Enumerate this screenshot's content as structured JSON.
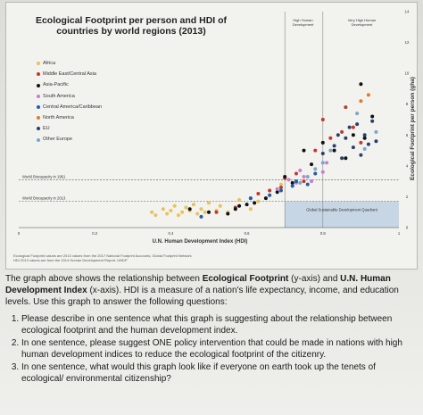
{
  "chart_data": {
    "type": "scatter",
    "title": "Ecological Footprint per person and HDI of countries by world regions (2013)",
    "xlabel": "U.N. Human Development Index (HDI)",
    "ylabel": "Ecological Footprint per person (gha)",
    "xlim": [
      0,
      1.0
    ],
    "ylim": [
      0,
      14
    ],
    "x_ticks": [
      "0",
      "0.2",
      "0.4",
      "0.6",
      "0.8",
      "1"
    ],
    "x_tick_values": [
      0,
      0.2,
      0.4,
      0.6,
      0.8,
      1.0
    ],
    "y_ticks": [
      "0",
      "2",
      "4",
      "6",
      "8",
      "10",
      "12",
      "14"
    ],
    "y_tick_values": [
      0,
      2,
      4,
      6,
      8,
      10,
      12,
      14
    ],
    "grid": false,
    "legend_position": "top-left",
    "hlines": [
      {
        "label": "World Biocapacity in 1961",
        "y": 3.1
      },
      {
        "label": "World Biocapacity in 2013",
        "y": 1.7
      }
    ],
    "vlines": [
      {
        "label": "High Human Development",
        "x": 0.7
      },
      {
        "label": "Very High Human Development",
        "x": 0.8
      }
    ],
    "quadrant_label": "Global Sustainable Development Quadrant",
    "series": [
      {
        "name": "Africa",
        "color": "#e8c25a",
        "points": [
          [
            0.35,
            1.0
          ],
          [
            0.36,
            0.8
          ],
          [
            0.38,
            1.2
          ],
          [
            0.39,
            0.9
          ],
          [
            0.4,
            1.1
          ],
          [
            0.41,
            1.4
          ],
          [
            0.42,
            0.8
          ],
          [
            0.43,
            1.0
          ],
          [
            0.44,
            1.3
          ],
          [
            0.45,
            1.1
          ],
          [
            0.46,
            1.5
          ],
          [
            0.47,
            0.9
          ],
          [
            0.48,
            1.2
          ],
          [
            0.49,
            1.0
          ],
          [
            0.5,
            1.6
          ],
          [
            0.52,
            1.1
          ],
          [
            0.53,
            1.4
          ],
          [
            0.55,
            1.0
          ],
          [
            0.57,
            1.3
          ],
          [
            0.58,
            1.8
          ],
          [
            0.61,
            1.2
          ],
          [
            0.63,
            1.7
          ],
          [
            0.66,
            2.1
          ],
          [
            0.69,
            2.8
          ]
        ]
      },
      {
        "name": "Middle East/Central Asia",
        "color": "#c0392b",
        "points": [
          [
            0.52,
            1.0
          ],
          [
            0.57,
            1.3
          ],
          [
            0.61,
            1.9
          ],
          [
            0.63,
            2.2
          ],
          [
            0.66,
            2.4
          ],
          [
            0.69,
            2.6
          ],
          [
            0.7,
            3.2
          ],
          [
            0.73,
            3.5
          ],
          [
            0.75,
            3.0
          ],
          [
            0.78,
            5.0
          ],
          [
            0.8,
            7.0
          ],
          [
            0.82,
            5.8
          ],
          [
            0.85,
            6.2
          ],
          [
            0.86,
            7.8
          ],
          [
            0.88,
            6.5
          ],
          [
            0.9,
            5.5
          ]
        ]
      },
      {
        "name": "Asia-Pacific",
        "color": "#111111",
        "points": [
          [
            0.45,
            1.2
          ],
          [
            0.5,
            1.0
          ],
          [
            0.55,
            0.9
          ],
          [
            0.57,
            1.2
          ],
          [
            0.58,
            1.4
          ],
          [
            0.6,
            1.5
          ],
          [
            0.62,
            1.6
          ],
          [
            0.65,
            1.9
          ],
          [
            0.68,
            2.3
          ],
          [
            0.7,
            3.3
          ],
          [
            0.72,
            2.9
          ],
          [
            0.75,
            5.0
          ],
          [
            0.77,
            4.1
          ],
          [
            0.8,
            5.5
          ],
          [
            0.83,
            5.0
          ],
          [
            0.86,
            4.5
          ],
          [
            0.88,
            6.0
          ],
          [
            0.9,
            9.3
          ],
          [
            0.91,
            5.8
          ],
          [
            0.93,
            7.2
          ]
        ]
      },
      {
        "name": "South America",
        "color": "#c97fc9",
        "points": [
          [
            0.68,
            2.5
          ],
          [
            0.71,
            3.1
          ],
          [
            0.73,
            2.9
          ],
          [
            0.74,
            3.7
          ],
          [
            0.75,
            3.3
          ],
          [
            0.77,
            3.0
          ],
          [
            0.8,
            3.6
          ],
          [
            0.81,
            4.2
          ]
        ]
      },
      {
        "name": "Central America/Caribbean",
        "color": "#1f5fa8",
        "points": [
          [
            0.48,
            0.7
          ],
          [
            0.61,
            1.9
          ],
          [
            0.66,
            2.1
          ],
          [
            0.69,
            2.4
          ],
          [
            0.72,
            2.7
          ],
          [
            0.73,
            3.0
          ],
          [
            0.76,
            2.8
          ],
          [
            0.78,
            3.5
          ]
        ]
      },
      {
        "name": "North America",
        "color": "#e07b2a",
        "points": [
          [
            0.9,
            8.2
          ],
          [
            0.92,
            8.6
          ]
        ]
      },
      {
        "name": "EU",
        "color": "#2b3f6b",
        "points": [
          [
            0.8,
            4.8
          ],
          [
            0.83,
            5.3
          ],
          [
            0.84,
            6.0
          ],
          [
            0.85,
            4.5
          ],
          [
            0.86,
            5.8
          ],
          [
            0.87,
            6.5
          ],
          [
            0.88,
            5.2
          ],
          [
            0.89,
            6.7
          ],
          [
            0.9,
            4.7
          ],
          [
            0.91,
            6.0
          ],
          [
            0.92,
            5.4
          ],
          [
            0.93,
            6.9
          ],
          [
            0.94,
            5.6
          ]
        ]
      },
      {
        "name": "Other Europe",
        "color": "#7aa6c9",
        "points": [
          [
            0.74,
            2.9
          ],
          [
            0.76,
            3.3
          ],
          [
            0.78,
            3.8
          ],
          [
            0.8,
            4.2
          ],
          [
            0.82,
            5.0
          ],
          [
            0.89,
            7.4
          ],
          [
            0.91,
            5.1
          ],
          [
            0.94,
            6.2
          ]
        ]
      }
    ]
  },
  "header_labels": {
    "high": [
      "High Human",
      "Development"
    ],
    "very_high": [
      "Very High Human",
      "Development"
    ]
  },
  "source_note": {
    "line1": "Ecological Footprint values are 2013 values from the 2017 National Footprint Accounts, Global Footprint Network",
    "line2": "HDI 2013 values are from the 2014 Human Development Report, UNDP"
  },
  "intro": {
    "part1": "The graph above shows the relationship between ",
    "bold1": "Ecological Footprint",
    "part2": " (y-axis) and ",
    "bold2": "U.N. Human Development Index",
    "part3": " (x-axis). HDI is a measure of a nation's life expectancy, income, and education levels. Use this graph to answer the following questions:"
  },
  "questions": [
    "Please describe in one sentence what this graph is suggesting about the relationship between ecological footprint and the human development index.",
    "In one sentence, please suggest ONE policy intervention that could be made in nations with high human development indices to reduce the ecological footprint of the citizenry.",
    "In one sentence, what would this graph look like if everyone on earth took up the tenets of ecological/ environmental citizenship?"
  ]
}
